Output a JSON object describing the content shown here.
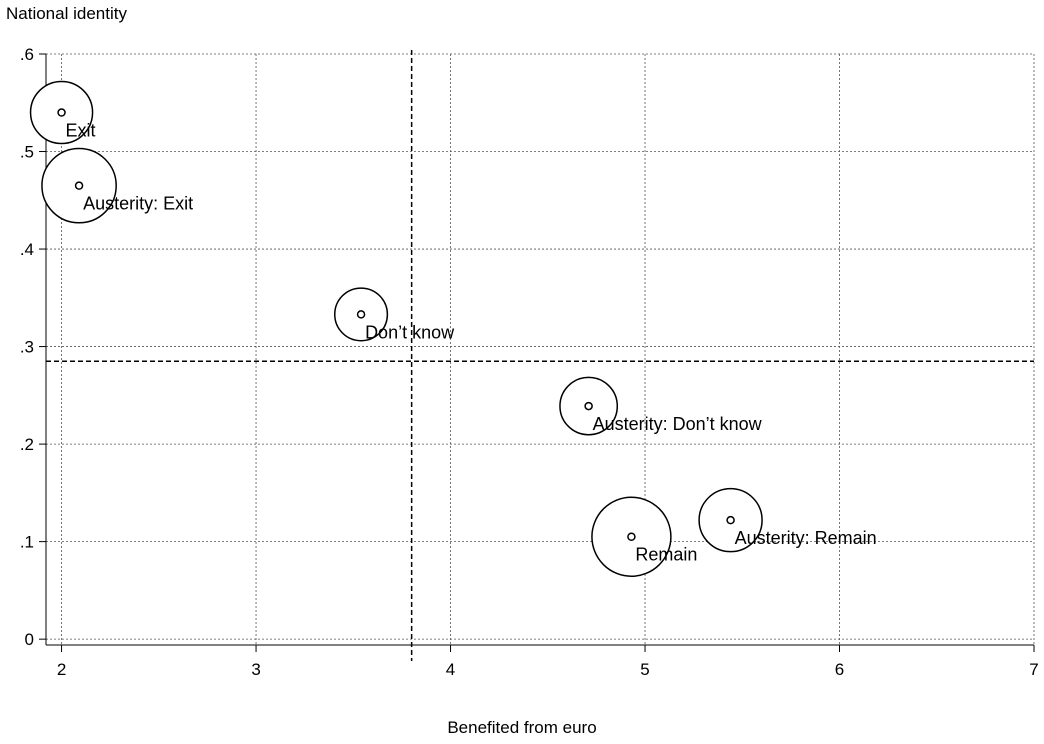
{
  "chart_data": {
    "type": "scatter",
    "title": "",
    "xlabel": "Benefited from euro",
    "ylabel": "National identity",
    "xlim": [
      1.92,
      7
    ],
    "ylim": [
      -0.006,
      0.6
    ],
    "x_ticks": [
      2,
      3,
      4,
      5,
      6,
      7
    ],
    "x_tick_labels": [
      "2",
      "3",
      "4",
      "5",
      "6",
      "7"
    ],
    "y_ticks": [
      0,
      0.1,
      0.2,
      0.3,
      0.4,
      0.5,
      0.6
    ],
    "y_tick_labels": [
      "0",
      ".1",
      ".2",
      ".3",
      ".4",
      ".5",
      ".6"
    ],
    "grid": true,
    "reference_lines": {
      "x": 3.8,
      "y": 0.285
    },
    "points": [
      {
        "label": "Exit",
        "x": 2.0,
        "y": 0.54,
        "relative_size": 0.66
      },
      {
        "label": "Austerity: Exit",
        "x": 2.09,
        "y": 0.465,
        "relative_size": 0.79
      },
      {
        "label": "Don’t know",
        "x": 3.54,
        "y": 0.333,
        "relative_size": 0.56
      },
      {
        "label": "Austerity: Don’t know",
        "x": 4.71,
        "y": 0.239,
        "relative_size": 0.61
      },
      {
        "label": "Remain",
        "x": 4.93,
        "y": 0.105,
        "relative_size": 0.84
      },
      {
        "label": "Austerity: Remain",
        "x": 5.44,
        "y": 0.122,
        "relative_size": 0.67
      }
    ]
  }
}
